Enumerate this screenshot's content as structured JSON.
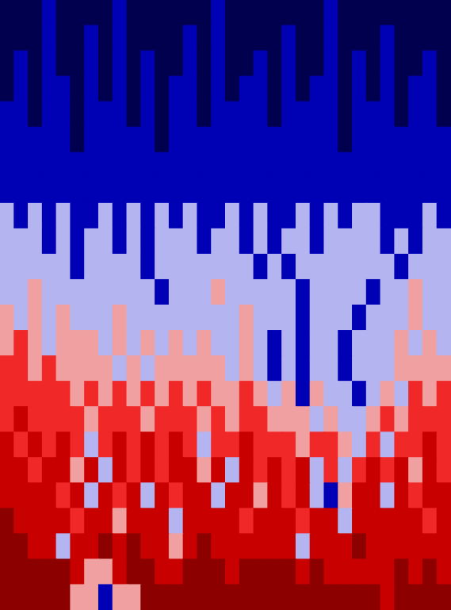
{
  "chart_data": {
    "type": "heatmap",
    "tick_labels": false,
    "grid": false,
    "cells": [
      [
        0,
        0,
        0,
        1,
        0,
        0,
        0,
        0,
        1,
        0,
        0,
        0,
        0,
        0,
        0,
        1,
        0,
        0,
        0,
        0,
        0,
        0,
        0,
        1,
        0,
        0,
        0,
        0,
        0,
        0,
        0,
        0
      ],
      [
        0,
        0,
        0,
        1,
        0,
        0,
        1,
        0,
        1,
        0,
        0,
        0,
        0,
        1,
        0,
        1,
        0,
        0,
        0,
        0,
        1,
        0,
        0,
        1,
        0,
        0,
        0,
        1,
        0,
        0,
        0,
        0
      ],
      [
        0,
        1,
        0,
        1,
        0,
        0,
        1,
        0,
        1,
        0,
        1,
        0,
        0,
        1,
        0,
        1,
        0,
        0,
        1,
        0,
        1,
        0,
        0,
        1,
        0,
        1,
        0,
        1,
        0,
        0,
        1,
        0
      ],
      [
        0,
        1,
        0,
        1,
        1,
        0,
        1,
        0,
        1,
        0,
        1,
        0,
        1,
        1,
        0,
        1,
        0,
        1,
        1,
        0,
        1,
        0,
        1,
        1,
        0,
        1,
        0,
        1,
        0,
        1,
        1,
        0
      ],
      [
        1,
        1,
        0,
        1,
        1,
        0,
        1,
        1,
        1,
        0,
        1,
        0,
        1,
        1,
        0,
        1,
        1,
        1,
        1,
        0,
        1,
        1,
        1,
        1,
        0,
        1,
        1,
        1,
        0,
        1,
        1,
        0
      ],
      [
        1,
        1,
        1,
        1,
        1,
        0,
        1,
        1,
        1,
        1,
        1,
        0,
        1,
        1,
        1,
        1,
        1,
        1,
        1,
        1,
        1,
        1,
        1,
        1,
        0,
        1,
        1,
        1,
        1,
        1,
        1,
        1
      ],
      [
        1,
        1,
        1,
        1,
        1,
        1,
        1,
        1,
        1,
        1,
        1,
        1,
        1,
        1,
        1,
        1,
        1,
        1,
        1,
        1,
        1,
        1,
        1,
        1,
        1,
        1,
        1,
        1,
        1,
        1,
        1,
        1
      ],
      [
        1,
        1,
        1,
        1,
        1,
        1,
        1,
        1,
        1,
        1,
        1,
        1,
        1,
        1,
        1,
        1,
        1,
        1,
        1,
        1,
        1,
        1,
        1,
        1,
        1,
        1,
        1,
        1,
        1,
        1,
        1,
        1
      ],
      [
        2,
        1,
        2,
        1,
        2,
        1,
        1,
        2,
        1,
        2,
        1,
        2,
        1,
        2,
        1,
        1,
        2,
        1,
        2,
        1,
        1,
        2,
        1,
        2,
        1,
        2,
        2,
        1,
        1,
        1,
        2,
        1
      ],
      [
        2,
        2,
        2,
        1,
        2,
        1,
        2,
        2,
        1,
        2,
        1,
        2,
        2,
        2,
        1,
        2,
        2,
        1,
        2,
        1,
        2,
        2,
        1,
        2,
        2,
        2,
        2,
        1,
        2,
        1,
        2,
        2
      ],
      [
        2,
        2,
        2,
        2,
        2,
        1,
        2,
        2,
        2,
        2,
        1,
        2,
        2,
        2,
        2,
        2,
        2,
        2,
        1,
        2,
        1,
        2,
        2,
        2,
        2,
        2,
        2,
        2,
        1,
        2,
        2,
        2
      ],
      [
        2,
        2,
        3,
        2,
        2,
        2,
        2,
        2,
        2,
        2,
        2,
        1,
        2,
        2,
        2,
        3,
        2,
        2,
        2,
        2,
        2,
        1,
        2,
        2,
        2,
        2,
        1,
        2,
        2,
        3,
        2,
        2
      ],
      [
        3,
        2,
        3,
        2,
        3,
        2,
        2,
        2,
        3,
        2,
        2,
        2,
        2,
        2,
        2,
        2,
        2,
        3,
        2,
        2,
        2,
        1,
        2,
        2,
        2,
        1,
        2,
        2,
        2,
        3,
        2,
        2
      ],
      [
        3,
        4,
        3,
        2,
        3,
        3,
        3,
        2,
        3,
        2,
        3,
        2,
        3,
        2,
        3,
        2,
        2,
        3,
        2,
        1,
        2,
        1,
        2,
        2,
        1,
        2,
        2,
        2,
        3,
        2,
        3,
        2
      ],
      [
        4,
        4,
        3,
        4,
        3,
        3,
        3,
        3,
        2,
        3,
        2,
        3,
        3,
        3,
        3,
        3,
        2,
        3,
        2,
        1,
        2,
        1,
        2,
        2,
        1,
        2,
        2,
        2,
        3,
        3,
        3,
        3
      ],
      [
        4,
        4,
        4,
        4,
        4,
        3,
        4,
        3,
        4,
        3,
        4,
        3,
        4,
        3,
        4,
        3,
        3,
        4,
        3,
        2,
        3,
        1,
        3,
        2,
        2,
        1,
        2,
        3,
        2,
        4,
        3,
        4
      ],
      [
        4,
        5,
        4,
        4,
        4,
        4,
        3,
        4,
        4,
        4,
        3,
        4,
        4,
        4,
        3,
        4,
        3,
        4,
        4,
        3,
        3,
        3,
        2,
        3,
        2,
        2,
        3,
        4,
        3,
        4,
        4,
        4
      ],
      [
        5,
        4,
        5,
        4,
        5,
        4,
        2,
        4,
        5,
        4,
        5,
        4,
        5,
        4,
        2,
        4,
        4,
        5,
        4,
        4,
        4,
        3,
        4,
        4,
        3,
        2,
        4,
        2,
        4,
        4,
        5,
        4
      ],
      [
        5,
        5,
        4,
        5,
        5,
        3,
        5,
        2,
        5,
        4,
        5,
        4,
        5,
        5,
        3,
        5,
        2,
        5,
        4,
        5,
        4,
        5,
        2,
        4,
        2,
        4,
        5,
        4,
        5,
        3,
        5,
        4
      ],
      [
        5,
        5,
        5,
        5,
        4,
        5,
        2,
        5,
        4,
        5,
        2,
        5,
        4,
        5,
        5,
        2,
        5,
        5,
        3,
        5,
        4,
        5,
        2,
        1,
        3,
        5,
        5,
        2,
        5,
        4,
        5,
        5
      ],
      [
        6,
        5,
        5,
        5,
        5,
        4,
        5,
        5,
        3,
        5,
        5,
        5,
        2,
        5,
        5,
        5,
        5,
        4,
        5,
        5,
        5,
        4,
        5,
        5,
        2,
        5,
        5,
        5,
        5,
        5,
        4,
        5
      ],
      [
        6,
        6,
        5,
        5,
        2,
        5,
        5,
        6,
        5,
        6,
        5,
        5,
        3,
        5,
        6,
        5,
        5,
        5,
        5,
        5,
        5,
        2,
        5,
        5,
        5,
        6,
        5,
        5,
        5,
        5,
        5,
        5
      ],
      [
        6,
        6,
        6,
        6,
        6,
        5,
        3,
        3,
        5,
        6,
        6,
        5,
        5,
        6,
        6,
        6,
        5,
        6,
        6,
        6,
        6,
        5,
        6,
        5,
        5,
        5,
        5,
        5,
        6,
        5,
        6,
        5
      ],
      [
        6,
        6,
        6,
        6,
        6,
        3,
        3,
        1,
        3,
        3,
        6,
        6,
        6,
        6,
        6,
        6,
        6,
        6,
        6,
        6,
        6,
        6,
        6,
        6,
        6,
        6,
        6,
        5,
        6,
        6,
        6,
        6
      ]
    ]
  }
}
